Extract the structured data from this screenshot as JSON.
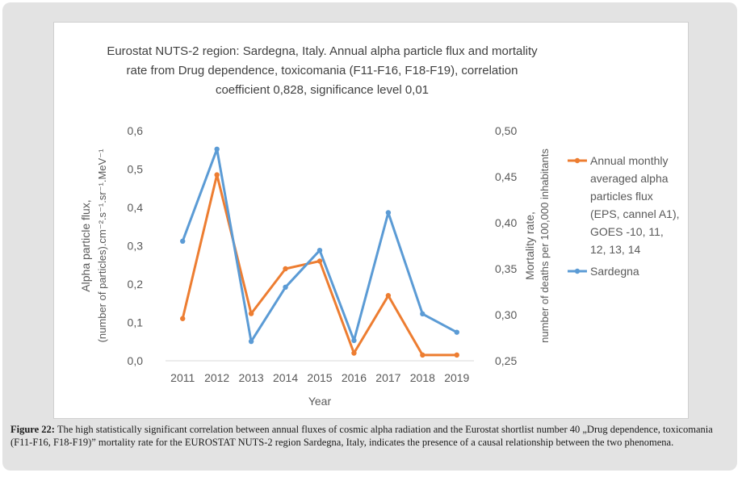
{
  "figure": {
    "caption_label": "Figure 22:",
    "caption_text": "The high statistically significant correlation between annual fluxes of cosmic alpha radiation and the Eurostat shortlist number 40 „Drug dependence, toxicomania (F11-F16, F18-F19)” mortality rate for the EUROSTAT NUTS-2 region Sardegna, Italy, indicates the presence of a causal relationship between the two phenomena."
  },
  "colors": {
    "flux": "#ED7D31",
    "mortality": "#5B9BD5",
    "text": "#595959",
    "title": "#404040"
  },
  "chart_data": {
    "type": "line",
    "title_lines": [
      "Eurostat NUTS-2 region: Sardegna, Italy. Annual alpha particle flux and mortality",
      "rate from Drug dependence, toxicomania (F11-F16, F18-F19), correlation",
      "coefficient 0,828, significance level 0,01"
    ],
    "xlabel": "Year",
    "ylabel_left_lines": [
      "Alpha particle flux,",
      "(number of particles).cm⁻².s⁻¹.sr⁻¹.MeV⁻¹"
    ],
    "ylabel_right_lines": [
      "Mortality rate,",
      "number of deaths per 100,000 inhabitants"
    ],
    "categories": [
      "2011",
      "2012",
      "2013",
      "2014",
      "2015",
      "2016",
      "2017",
      "2018",
      "2019"
    ],
    "ylim_left": [
      0,
      0.6
    ],
    "yticks_left": [
      "0,0",
      "0,1",
      "0,2",
      "0,3",
      "0,4",
      "0,5",
      "0,6"
    ],
    "ylim_right": [
      0.25,
      0.5
    ],
    "yticks_right": [
      "0,25",
      "0,30",
      "0,35",
      "0,40",
      "0,45",
      "0,50"
    ],
    "grid": false,
    "legend_position": "right",
    "series": [
      {
        "name": "Annual monthly averaged alpha particles flux (EPS, cannel A1), GOES -10, 11, 12, 13, 14",
        "legend_lines": [
          "Annual monthly",
          "averaged alpha",
          "particles flux",
          "(EPS, cannel A1),",
          "GOES -10, 11,",
          "12, 13, 14"
        ],
        "axis": "left",
        "color_key": "flux",
        "values": [
          0.11,
          0.485,
          0.123,
          0.24,
          0.26,
          0.02,
          0.17,
          0.015,
          0.015
        ]
      },
      {
        "name": "Sardegna",
        "legend_lines": [
          "Sardegna"
        ],
        "axis": "right",
        "color_key": "mortality",
        "values": [
          0.38,
          0.48,
          0.271,
          0.33,
          0.37,
          0.272,
          0.411,
          0.301,
          0.281
        ]
      }
    ]
  }
}
